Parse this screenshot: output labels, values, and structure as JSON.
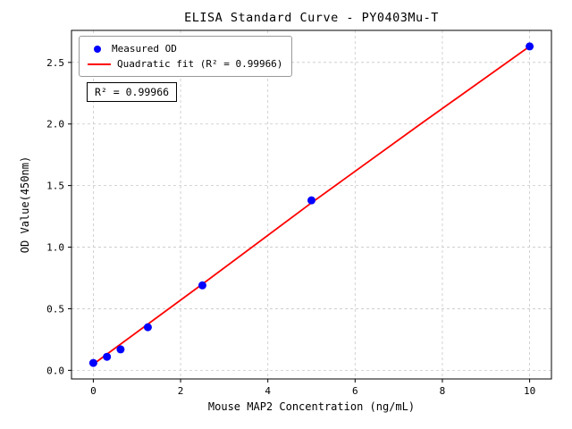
{
  "chart_data": {
    "type": "scatter",
    "title": "ELISA Standard Curve - PY0403Mu-T",
    "xlabel": "Mouse MAP2 Concentration (ng/mL)",
    "ylabel": "OD Value(450nm)",
    "xlim": [
      -0.5,
      10.5
    ],
    "ylim": [
      -0.07,
      2.76
    ],
    "xticks": [
      0,
      2,
      4,
      6,
      8,
      10
    ],
    "xtick_labels": [
      "0",
      "2",
      "4",
      "6",
      "8",
      "10"
    ],
    "yticks": [
      0.0,
      0.5,
      1.0,
      1.5,
      2.0,
      2.5
    ],
    "ytick_labels": [
      "0.0",
      "0.5",
      "1.0",
      "1.5",
      "2.0",
      "2.5"
    ],
    "grid": true,
    "grid_color": "#c8c8c8",
    "legend_position": "upper left",
    "annotation": "R² = 0.99966",
    "series": [
      {
        "name": "Measured OD",
        "type": "scatter",
        "color": "#0000ff",
        "x": [
          0,
          0.3125,
          0.625,
          1.25,
          2.5,
          5,
          10
        ],
        "y": [
          0.06,
          0.11,
          0.17,
          0.35,
          0.69,
          1.38,
          2.63
        ]
      },
      {
        "name": "Quadratic fit (R² = 0.99966)",
        "type": "line",
        "color": "#ff0000",
        "x": [
          0,
          2.5,
          5,
          7.5,
          10
        ],
        "y": [
          0.05,
          0.7,
          1.36,
          2.0,
          2.63
        ]
      }
    ]
  }
}
